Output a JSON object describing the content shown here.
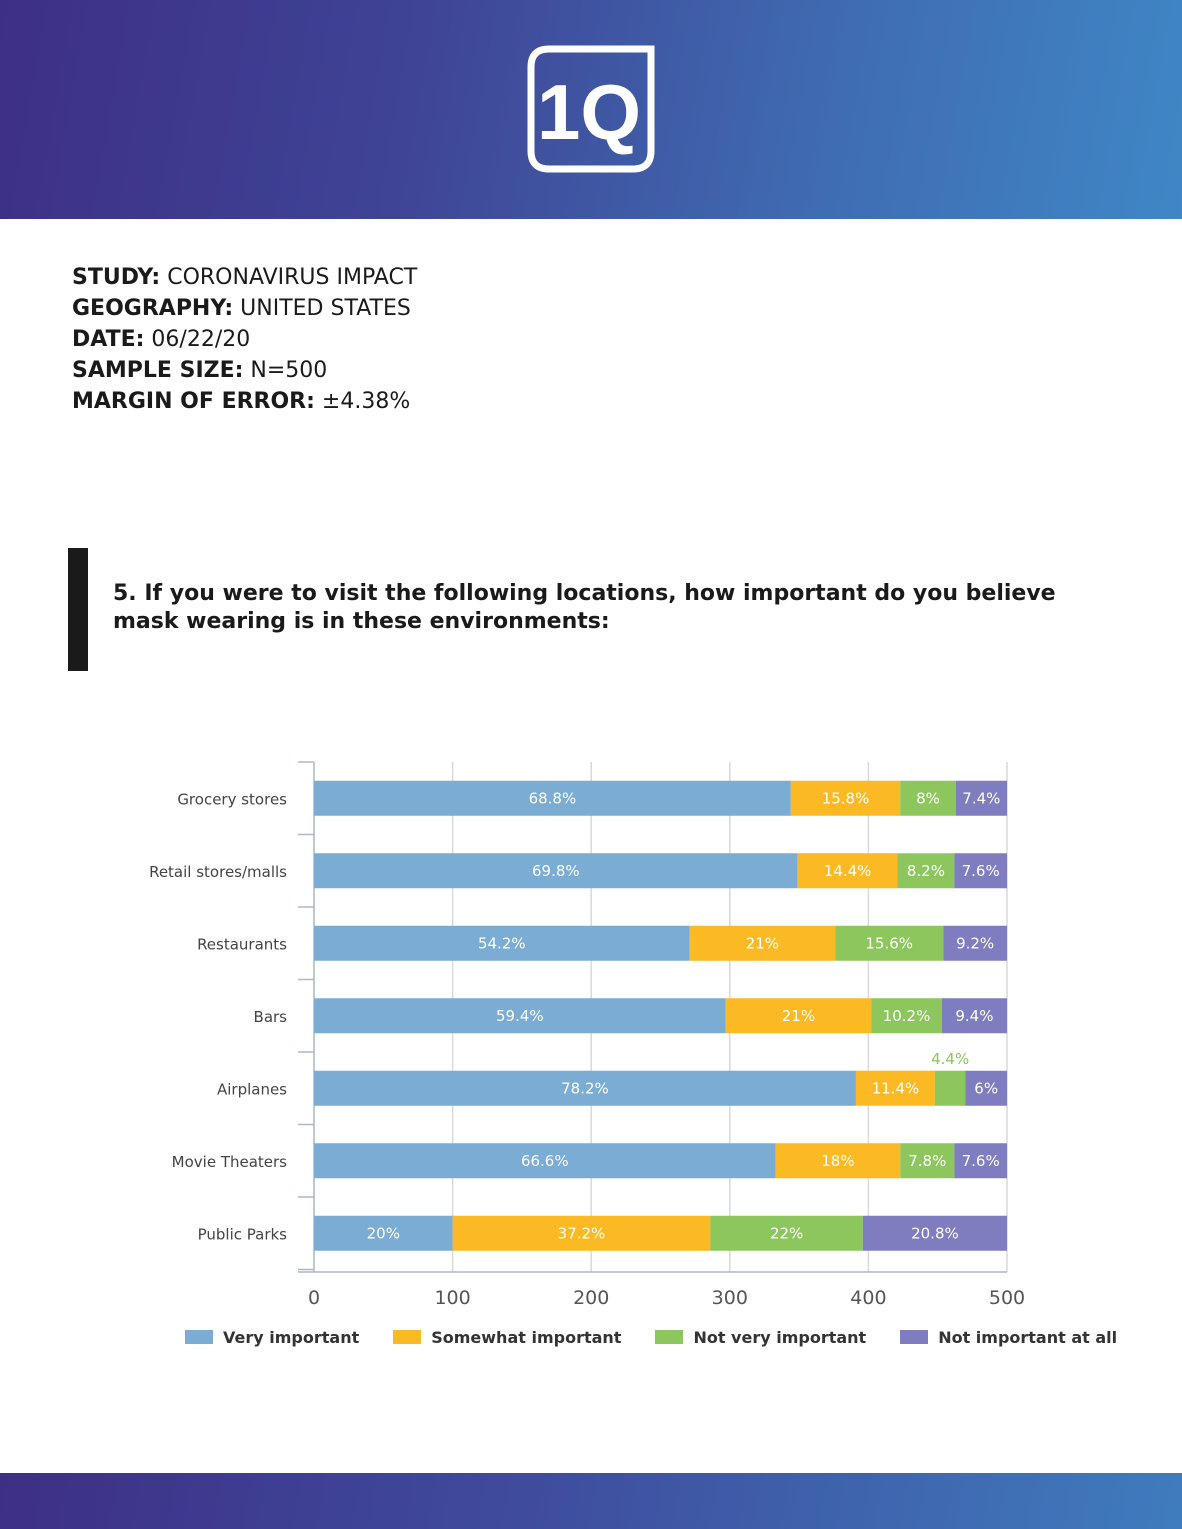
{
  "header": {
    "logo_text": "1Q"
  },
  "meta": [
    {
      "key": "STUDY:",
      "value": "CORONAVIRUS IMPACT"
    },
    {
      "key": "GEOGRAPHY:",
      "value": "UNITED STATES"
    },
    {
      "key": "DATE:",
      "value": "06/22/20"
    },
    {
      "key": "SAMPLE SIZE:",
      "value": "N=500"
    },
    {
      "key": "MARGIN OF ERROR:",
      "value": "±4.38%"
    }
  ],
  "question": "5. If you were to visit the following locations, how important do you believe mask wearing is in these environments:",
  "colors": {
    "very": "#7bacd4",
    "somewhat": "#fbb923",
    "notvery": "#8cc65d",
    "notatall": "#7e7dbf",
    "grid": "#d9d9d9",
    "axis": "#aab7c8",
    "header_start": "#3d2f85",
    "header_end": "#3f87c6"
  },
  "chart_data": {
    "type": "bar",
    "orientation": "horizontal",
    "stacked": true,
    "categories": [
      "Grocery stores",
      "Retail stores/malls",
      "Restaurants",
      "Bars",
      "Airplanes",
      "Movie Theaters",
      "Public Parks"
    ],
    "series": [
      {
        "name": "Very important",
        "color": "#7bacd4",
        "values": [
          344,
          349,
          271,
          297,
          391,
          333,
          100
        ],
        "labels": [
          "68.8%",
          "69.8%",
          "54.2%",
          "59.4%",
          "78.2%",
          "66.6%",
          "20%"
        ]
      },
      {
        "name": "Somewhat important",
        "color": "#fbb923",
        "values": [
          79,
          72,
          105,
          105,
          57,
          90,
          186
        ],
        "labels": [
          "15.8%",
          "14.4%",
          "21%",
          "21%",
          "11.4%",
          "18%",
          "37.2%"
        ]
      },
      {
        "name": "Not very important",
        "color": "#8cc65d",
        "values": [
          40,
          41,
          78,
          51,
          22,
          39,
          110
        ],
        "labels": [
          "8%",
          "8.2%",
          "15.6%",
          "10.2%",
          "4.4%",
          "7.8%",
          "22%"
        ]
      },
      {
        "name": "Not important at all",
        "color": "#7e7dbf",
        "values": [
          37,
          38,
          46,
          47,
          30,
          38,
          104
        ],
        "labels": [
          "7.4%",
          "7.6%",
          "9.2%",
          "9.4%",
          "6%",
          "7.6%",
          "20.8%"
        ]
      }
    ],
    "xlim": [
      0,
      500
    ],
    "xticks": [
      "0",
      "100",
      "200",
      "300",
      "400",
      "500"
    ],
    "grid": true,
    "legend": "bottom"
  }
}
